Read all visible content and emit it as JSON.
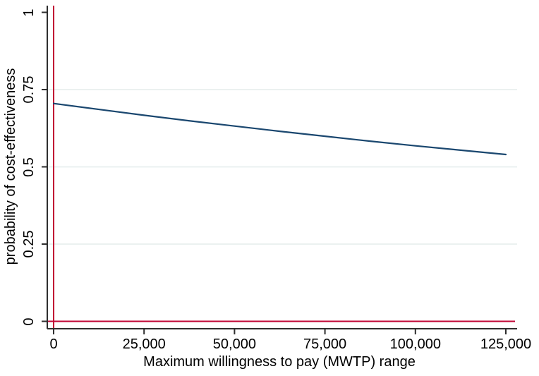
{
  "figure": {
    "background": "#ffffff",
    "x_axis": {
      "title": "Maximum willingness to pay (MWTP) range",
      "ticks": [
        {
          "value": 0,
          "label": "0"
        },
        {
          "value": 25000,
          "label": "25,000"
        },
        {
          "value": 50000,
          "label": "50,000"
        },
        {
          "value": 75000,
          "label": "75,000"
        },
        {
          "value": 100000,
          "label": "100,000"
        },
        {
          "value": 125000,
          "label": "125,000"
        }
      ]
    },
    "y_axis": {
      "title": "probability of cost-effectiveness",
      "ticks": [
        {
          "value": 0,
          "label": "0"
        },
        {
          "value": 0.25,
          "label": "0.25"
        },
        {
          "value": 0.5,
          "label": "0.5"
        },
        {
          "value": 0.75,
          "label": "0.75"
        },
        {
          "value": 1,
          "label": "1"
        }
      ],
      "grid_values": [
        0.25,
        0.5,
        0.75
      ]
    },
    "colors": {
      "curve": "#1a476f",
      "reference_line": "#c10534",
      "grid": "#ebf1f0",
      "axis": "#2e2e2e",
      "text": "#000000"
    }
  },
  "chart_data": {
    "type": "line",
    "title": "",
    "xlabel": "Maximum willingness to pay (MWTP) range",
    "ylabel": "probability of cost-effectiveness",
    "xlim": [
      0,
      125000
    ],
    "ylim": [
      0,
      1
    ],
    "grid": "horizontal gridlines at 0.25, 0.5, 0.75 only",
    "legend": "none",
    "x": [
      0,
      12500,
      25000,
      37500,
      50000,
      62500,
      75000,
      87500,
      100000,
      112500,
      125000
    ],
    "series": [
      {
        "name": "probability of cost-effectiveness",
        "values": [
          0.705,
          0.686,
          0.667,
          0.649,
          0.632,
          0.615,
          0.599,
          0.583,
          0.568,
          0.554,
          0.54
        ]
      }
    ],
    "reference_lines": {
      "vertical_x": 0,
      "horizontal_y": 0
    }
  }
}
